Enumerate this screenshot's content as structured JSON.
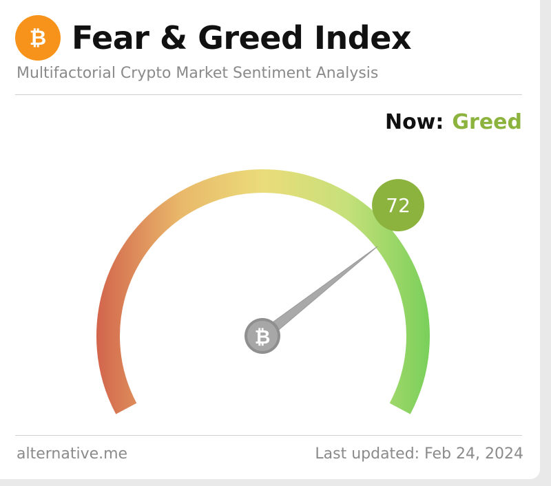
{
  "header": {
    "title": "Fear & Greed Index",
    "subtitle": "Multifactorial Crypto Market Sentiment Analysis",
    "logo_icon": "bitcoin-icon",
    "logo_color": "#f7931a"
  },
  "now": {
    "label": "Now:",
    "classification": "Greed",
    "color": "#8cb33e"
  },
  "gauge": {
    "value": 72,
    "value_text": "72",
    "min": 0,
    "max": 100,
    "badge_color": "#8cb33e",
    "gradient_colors": [
      "#d2644c",
      "#e9c96e",
      "#eadc7a",
      "#c8e27a",
      "#7fd05e"
    ],
    "hub_icon": "bitcoin-icon"
  },
  "footer": {
    "source": "alternative.me",
    "last_updated": "Last updated: Feb 24, 2024"
  }
}
